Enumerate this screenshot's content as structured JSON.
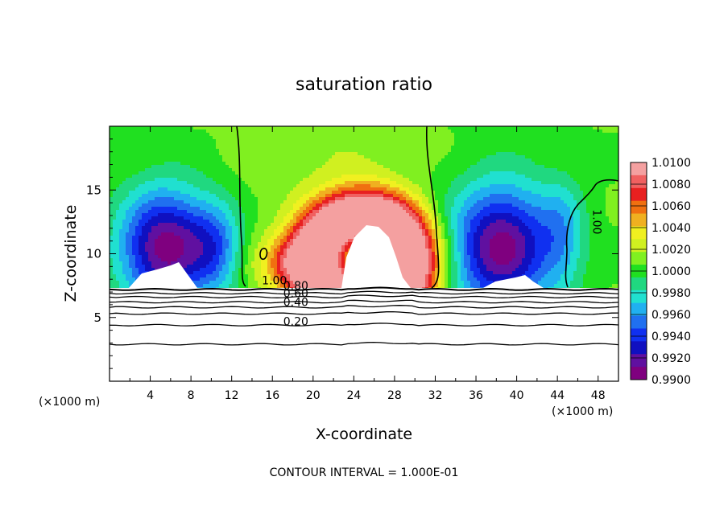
{
  "chart_data": {
    "type": "heatmap",
    "title": "saturation ratio",
    "xlabel": "X-coordinate",
    "ylabel": "Z-coordinate",
    "x_unit_left": "(×1000 m)",
    "x_unit_right": "(×1000 m)",
    "xlim": [
      0,
      50
    ],
    "ylim": [
      0,
      20
    ],
    "x_ticks": [
      4,
      8,
      12,
      16,
      20,
      24,
      28,
      32,
      36,
      40,
      44,
      48
    ],
    "y_ticks": [
      5,
      10,
      15
    ],
    "footer": "CONTOUR INTERVAL = 1.000E-01",
    "colorbar": {
      "levels": [
        "1.0100",
        "1.0080",
        "1.0060",
        "1.0040",
        "1.0020",
        "1.0000",
        "0.9980",
        "0.9960",
        "0.9940",
        "0.9920",
        "0.9900"
      ],
      "colors": [
        "#f4a0a0",
        "#f06060",
        "#e82020",
        "#f07010",
        "#f0b020",
        "#f0f020",
        "#d0f020",
        "#80f020",
        "#20e020",
        "#20d880",
        "#20e0d0",
        "#20b0f0",
        "#2070f0",
        "#1030f0",
        "#1010c0",
        "#6010a0",
        "#7f007f"
      ]
    },
    "contour_labels": [
      {
        "text": "1.00",
        "x": 16.2,
        "y": 7.6
      },
      {
        "text": "0.80",
        "x": 18.3,
        "y": 7.2
      },
      {
        "text": "0.60",
        "x": 18.3,
        "y": 6.6
      },
      {
        "text": "0.40",
        "x": 18.3,
        "y": 5.9
      },
      {
        "text": "0.20",
        "x": 18.3,
        "y": 4.4
      },
      {
        "text": "1.00",
        "x": 47.5,
        "y": 12.5
      }
    ],
    "ground_contours_z": [
      7.2,
      6.9,
      6.6,
      6.2,
      5.8,
      5.3,
      4.4,
      2.9
    ]
  }
}
